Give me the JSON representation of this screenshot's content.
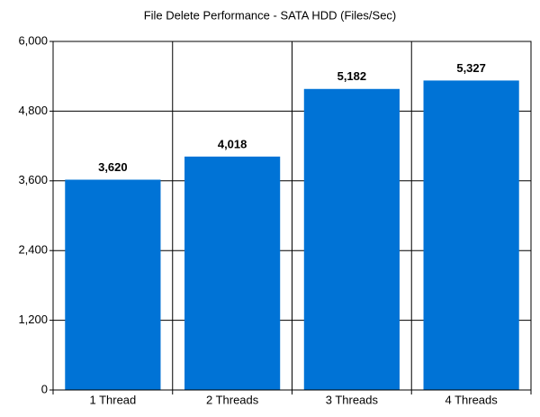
{
  "chart_data": {
    "type": "bar",
    "title": "File Delete Performance - SATA HDD (Files/Sec)",
    "categories": [
      "1 Thread",
      "2 Threads",
      "3 Threads",
      "4 Threads"
    ],
    "values": [
      3620,
      4018,
      5182,
      5327
    ],
    "value_labels": [
      "3,620",
      "4,018",
      "5,182",
      "5,327"
    ],
    "color": "#0073d6",
    "ylim": [
      0,
      6000
    ],
    "yticks": [
      0,
      {
        "value": 1200,
        "label": "1,200"
      },
      {
        "value": 2400,
        "label": "2,400"
      },
      {
        "value": 3600,
        "label": "3,600"
      },
      {
        "value": 4800,
        "label": "4,800"
      },
      {
        "value": 6000,
        "label": "6,000"
      }
    ],
    "grid": true
  }
}
